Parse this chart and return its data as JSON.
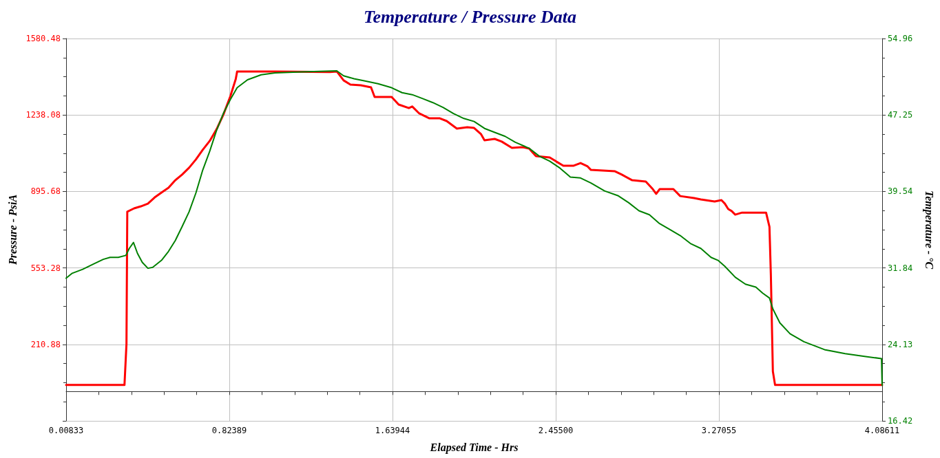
{
  "chart_data": {
    "type": "line",
    "title": "Temperature / Pressure Data",
    "xlabel": "Elapsed Time - Hrs",
    "ylabel": "Pressure - PsiA",
    "y2label": "Temperature - °C",
    "xlim": [
      0.00833,
      4.08611
    ],
    "xticks": [
      0.00833,
      0.82389,
      1.63944,
      {
        "value": 2.455,
        "label": "2.45500"
      },
      3.27055,
      4.08611
    ],
    "ylim": [
      -131.52,
      1580.48
    ],
    "yticks": [
      {
        "value": -131.52,
        "label": null
      },
      210.88,
      553.28,
      895.68,
      1238.08,
      1580.48
    ],
    "y2lim": [
      16.42,
      54.96
    ],
    "y2ticks": [
      16.42,
      24.13,
      31.84,
      39.54,
      47.25,
      54.96
    ],
    "grid": true,
    "marker": "none",
    "line_style": "solid",
    "series": [
      {
        "color": "#ff0000",
        "x": [
          0.00833,
          0.3,
          0.31,
          0.314,
          0.348,
          0.382,
          0.417,
          0.451,
          0.485,
          0.52,
          0.554,
          0.588,
          0.623,
          0.657,
          0.691,
          0.726,
          0.76,
          0.794,
          0.829,
          0.856,
          0.863,
          1.052,
          1.326,
          1.361,
          1.395,
          1.429,
          1.481,
          1.532,
          1.55,
          1.635,
          1.67,
          1.721,
          1.738,
          1.773,
          1.824,
          1.876,
          1.91,
          1.961,
          2.013,
          2.047,
          2.082,
          2.099,
          2.15,
          2.185,
          2.236,
          2.288,
          2.322,
          2.356,
          2.425,
          2.459,
          2.493,
          2.545,
          2.579,
          2.614,
          2.631,
          2.751,
          2.785,
          2.837,
          2.905,
          2.94,
          2.957,
          2.974,
          3.043,
          3.077,
          3.146,
          3.18,
          3.249,
          3.283,
          3.3,
          3.317,
          3.334,
          3.352,
          3.386,
          3.506,
          3.523,
          3.53,
          3.54,
          3.551,
          4.086
        ],
        "values": [
          29,
          29,
          213,
          805,
          820,
          829,
          841,
          869,
          891,
          912,
          946,
          971,
          1002,
          1039,
          1082,
          1122,
          1174,
          1239,
          1322,
          1399,
          1433,
          1433,
          1430,
          1433,
          1393,
          1374,
          1371,
          1362,
          1319,
          1319,
          1285,
          1269,
          1276,
          1245,
          1223,
          1223,
          1211,
          1177,
          1183,
          1180,
          1152,
          1125,
          1131,
          1119,
          1091,
          1094,
          1088,
          1054,
          1048,
          1029,
          1011,
          1011,
          1023,
          1008,
          992,
          986,
          971,
          946,
          940,
          906,
          885,
          906,
          906,
          875,
          866,
          860,
          851,
          857,
          841,
          817,
          808,
          792,
          801,
          801,
          737,
          521,
          90,
          29,
          29
        ]
      },
      {
        "color": "#008000",
        "axis": "y2",
        "x": [
          0.00833,
          0.039,
          0.091,
          0.142,
          0.194,
          0.228,
          0.269,
          0.307,
          0.324,
          0.345,
          0.365,
          0.389,
          0.417,
          0.441,
          0.485,
          0.52,
          0.554,
          0.588,
          0.623,
          0.657,
          0.691,
          0.726,
          0.76,
          0.794,
          0.829,
          0.863,
          0.915,
          0.983,
          1.052,
          1.189,
          1.361,
          1.395,
          1.447,
          1.498,
          1.567,
          1.635,
          1.687,
          1.738,
          1.79,
          1.841,
          1.893,
          1.944,
          1.996,
          2.047,
          2.099,
          2.15,
          2.202,
          2.253,
          2.322,
          2.373,
          2.425,
          2.476,
          2.528,
          2.579,
          2.631,
          2.699,
          2.768,
          2.82,
          2.871,
          2.923,
          2.974,
          3.026,
          3.077,
          3.128,
          3.18,
          3.231,
          3.266,
          3.3,
          3.352,
          3.403,
          3.455,
          3.489,
          3.523,
          3.54,
          3.575,
          3.626,
          3.695,
          3.798,
          3.901,
          4.004,
          4.083,
          4.086
        ],
        "values": [
          30.8,
          31.3,
          31.7,
          32.2,
          32.7,
          32.9,
          32.9,
          33.1,
          33.8,
          34.4,
          33.3,
          32.4,
          31.8,
          31.9,
          32.6,
          33.5,
          34.6,
          36.0,
          37.5,
          39.4,
          41.7,
          43.6,
          45.7,
          47.4,
          48.8,
          50.0,
          50.8,
          51.3,
          51.5,
          51.6,
          51.7,
          51.2,
          50.9,
          50.7,
          50.4,
          50.0,
          49.5,
          49.3,
          48.9,
          48.5,
          48.0,
          47.4,
          46.9,
          46.6,
          45.9,
          45.5,
          45.1,
          44.5,
          43.9,
          43.1,
          42.6,
          41.9,
          41.0,
          40.9,
          40.4,
          39.6,
          39.1,
          38.4,
          37.6,
          37.2,
          36.3,
          35.7,
          35.1,
          34.3,
          33.8,
          32.9,
          32.6,
          32.0,
          30.9,
          30.2,
          29.9,
          29.3,
          28.8,
          27.7,
          26.3,
          25.2,
          24.4,
          23.6,
          23.2,
          22.9,
          22.7,
          20.0
        ]
      }
    ]
  }
}
